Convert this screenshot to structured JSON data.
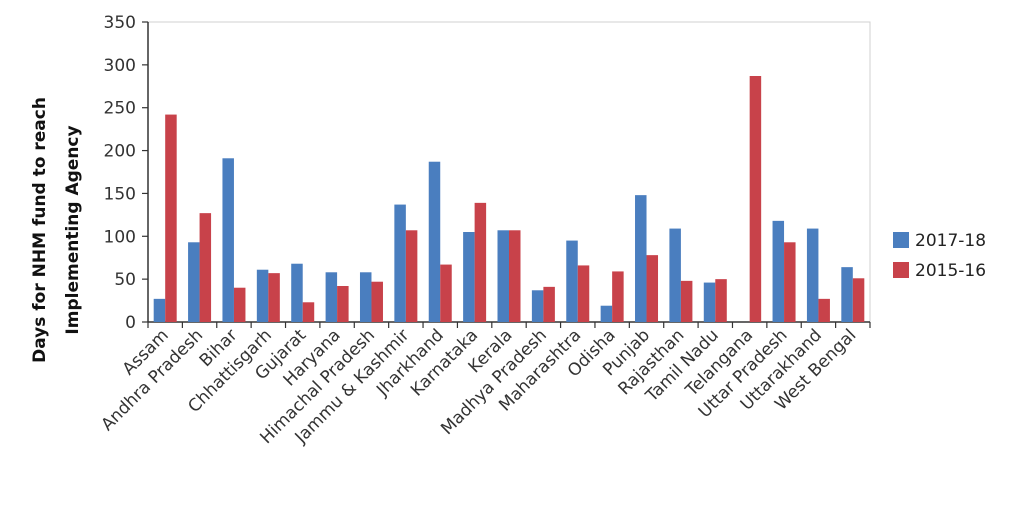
{
  "chart_data": {
    "type": "bar",
    "title": "",
    "xlabel": "",
    "ylabel_lines": [
      "Days for NHM fund to reach",
      "Implementing  Agency"
    ],
    "ylim": [
      0,
      350
    ],
    "yticks": [
      0,
      50,
      100,
      150,
      200,
      250,
      300,
      350
    ],
    "grid": false,
    "legend_position": "right",
    "categories": [
      "Assam",
      "Andhra Pradesh",
      "Bihar",
      "Chhattisgarh",
      "Gujarat",
      "Haryana",
      "Himachal Pradesh",
      "Jammu & Kashmir",
      "Jharkhand",
      "Karnataka",
      "Kerala",
      "Madhya Pradesh",
      "Maharashtra",
      "Odisha",
      "Punjab",
      "Rajasthan",
      "Tamil Nadu",
      "Telangana",
      "Uttar Pradesh",
      "Uttarakhand",
      "West Bengal"
    ],
    "series": [
      {
        "name": "2017-18",
        "color": "#4a7ebf",
        "values": [
          27,
          93,
          191,
          61,
          68,
          58,
          58,
          137,
          187,
          105,
          107,
          37,
          95,
          19,
          148,
          109,
          46,
          0,
          118,
          109,
          64
        ]
      },
      {
        "name": "2015-16",
        "color": "#c8424a",
        "values": [
          242,
          127,
          40,
          57,
          23,
          42,
          47,
          107,
          67,
          139,
          107,
          41,
          66,
          59,
          78,
          48,
          50,
          287,
          93,
          27,
          51
        ]
      }
    ]
  }
}
